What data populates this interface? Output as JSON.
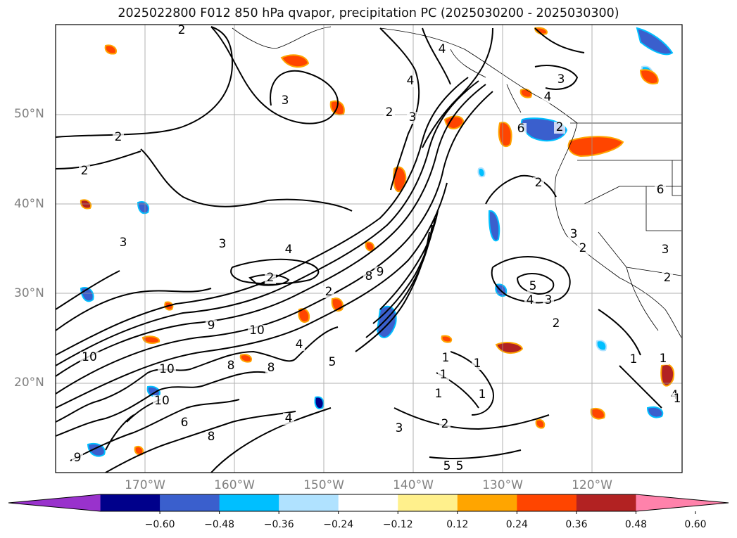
{
  "title": "2025022800 F012 850 hPa qvapor, precipitation PC (2025030200 - 2025030300)",
  "lat_labels": [
    "50°N",
    "40°N",
    "30°N",
    "20°N"
  ],
  "lon_labels": [
    "170°W",
    "160°W",
    "150°W",
    "140°W",
    "130°W",
    "120°W"
  ],
  "colorbar": {
    "ticks": [
      "−0.60",
      "−0.48",
      "−0.36",
      "−0.24",
      "−0.12",
      "0.12",
      "0.24",
      "0.36",
      "0.48",
      "0.60"
    ],
    "colors": [
      "#9932cc",
      "#00008b",
      "#3a5fcd",
      "#00bfff",
      "#b0e2ff",
      "#ffffff",
      "#fff08c",
      "#ffa500",
      "#ff4500",
      "#b22222",
      "#ff82ab"
    ]
  },
  "contour_labels": [
    "2",
    "2",
    "2",
    "3",
    "4",
    "4",
    "3",
    "2",
    "6",
    "4",
    "3",
    "2",
    "2",
    "3",
    "4",
    "2",
    "2",
    "3",
    "3",
    "2",
    "8",
    "9",
    "5",
    "4",
    "3",
    "2",
    "1",
    "9",
    "10",
    "10",
    "10",
    "10",
    "8",
    "8",
    "6",
    "9",
    "8",
    "5",
    "4",
    "3",
    "2",
    "1",
    "1",
    "1",
    "1",
    "1",
    "5",
    "5",
    "4",
    "3",
    "4",
    "1",
    "1",
    "2",
    "6"
  ]
}
